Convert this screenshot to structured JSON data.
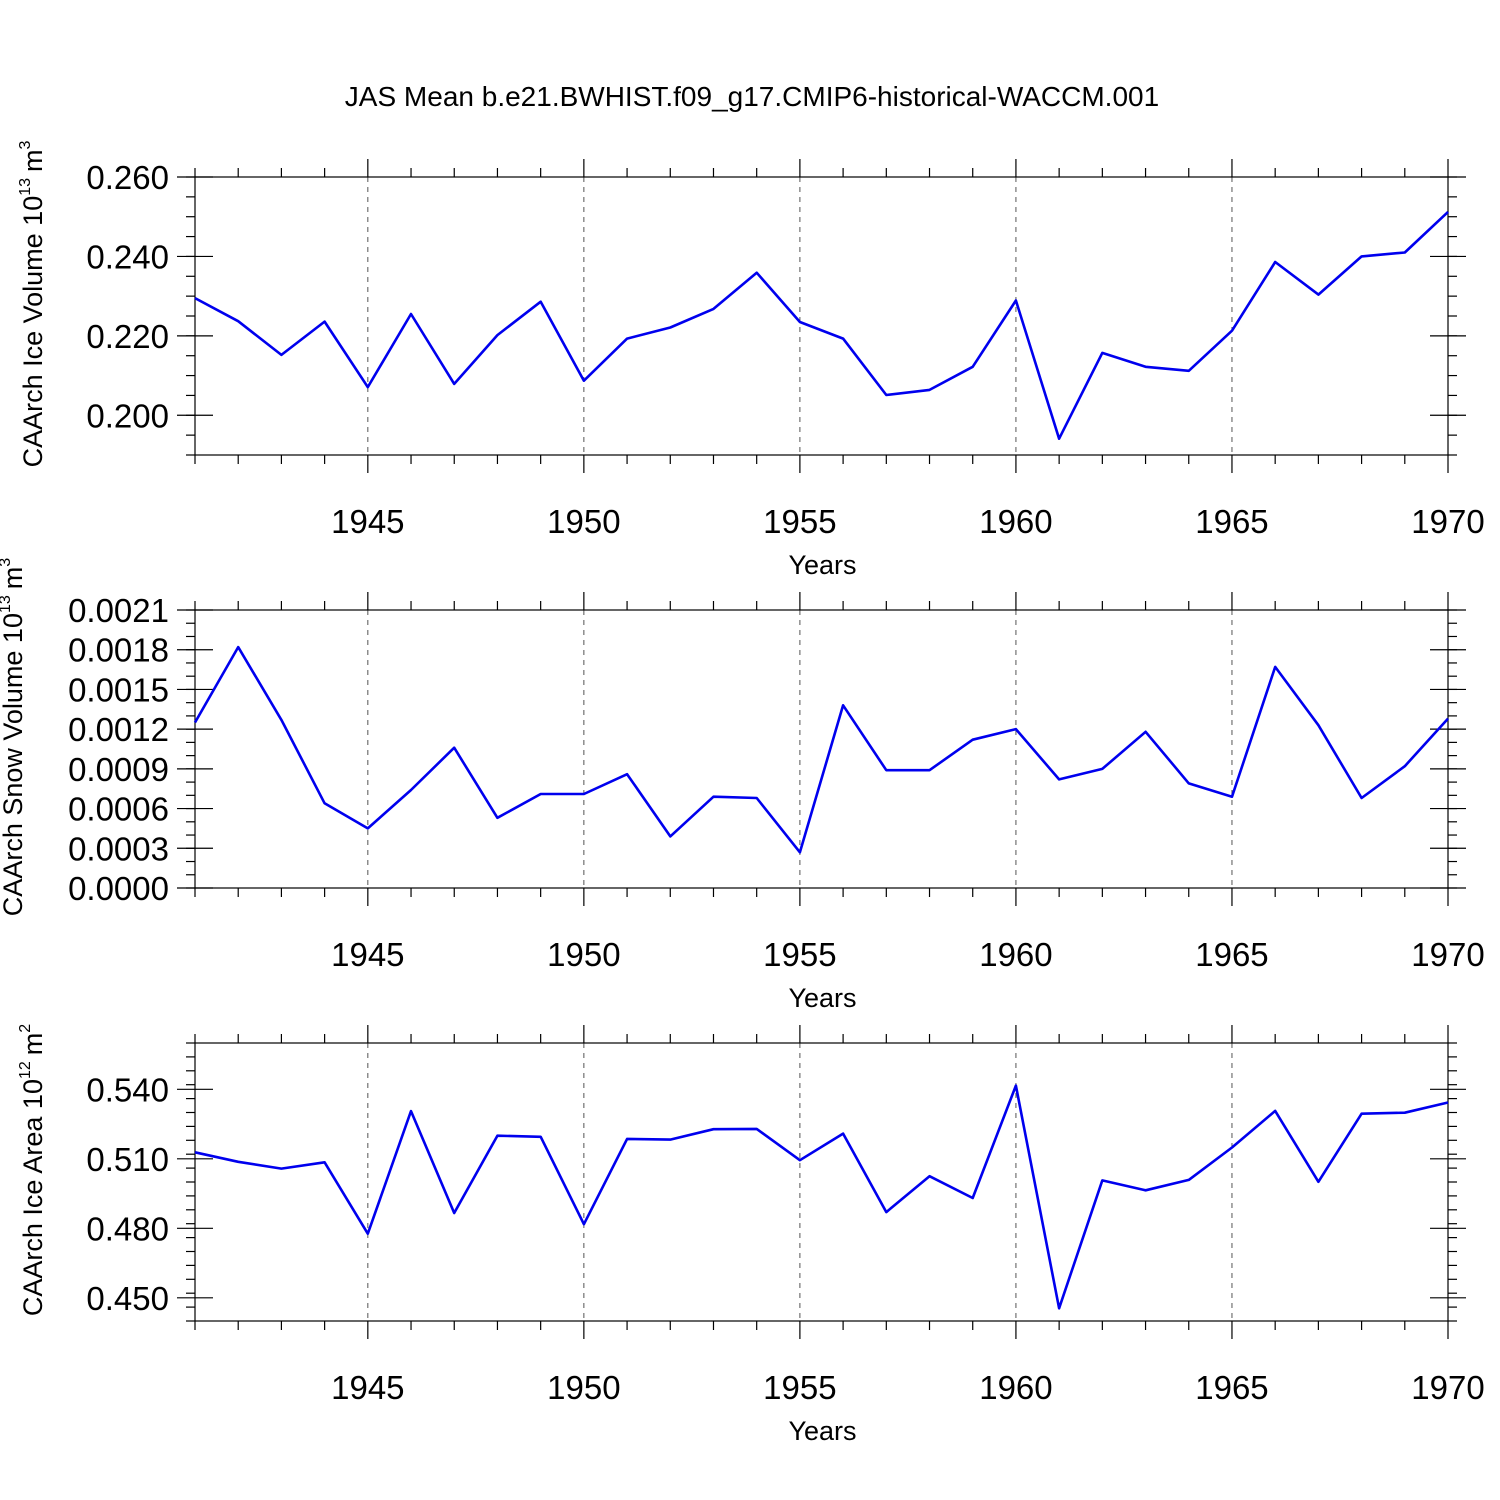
{
  "chart_data": {
    "title": "JAS Mean b.e21.BWHIST.f09_g17.CMIP6-historical-WACCM.001",
    "x": [
      1941,
      1942,
      1943,
      1944,
      1945,
      1946,
      1947,
      1948,
      1949,
      1950,
      1951,
      1952,
      1953,
      1954,
      1955,
      1956,
      1957,
      1958,
      1959,
      1960,
      1961,
      1962,
      1963,
      1964,
      1965,
      1966,
      1967,
      1968,
      1969,
      1970
    ],
    "x_tick_values": [
      1945,
      1950,
      1955,
      1960,
      1965,
      1970
    ],
    "x_tick_labels": [
      "1945",
      "1950",
      "1955",
      "1960",
      "1965",
      "1970"
    ],
    "xlim": [
      1941,
      1970
    ],
    "grid": "dashed vertical lines at labeled years",
    "panels": [
      {
        "type": "line",
        "ylabel": "CAArch Ice Volume 10",
        "ylabel_exponent": "13",
        "ylabel_unit": "m",
        "ylabel_unit_exponent": "3",
        "xlabel": "Years",
        "ylim": [
          0.19,
          0.26
        ],
        "y_tick_values": [
          0.2,
          0.22,
          0.24,
          0.26
        ],
        "y_tick_labels": [
          "0.200",
          "0.220",
          "0.240",
          "0.260"
        ],
        "y_minor_step": 0.005,
        "color": "#0000ee",
        "values": [
          0.2295,
          0.2237,
          0.2152,
          0.2236,
          0.2071,
          0.2255,
          0.2079,
          0.2202,
          0.2286,
          0.2087,
          0.2193,
          0.2221,
          0.2268,
          0.2359,
          0.2235,
          0.2193,
          0.2051,
          0.2064,
          0.2122,
          0.2289,
          0.1941,
          0.2157,
          0.2122,
          0.2112,
          0.2213,
          0.2386,
          0.2304,
          0.24,
          0.241,
          0.2512
        ]
      },
      {
        "type": "line",
        "ylabel": "CAArch Snow Volume 10",
        "ylabel_exponent": "13",
        "ylabel_unit": "m",
        "ylabel_unit_exponent": "3",
        "xlabel": "Years",
        "ylim": [
          0.0,
          0.0021
        ],
        "y_tick_values": [
          0.0,
          0.0003,
          0.0006,
          0.0009,
          0.0012,
          0.0015,
          0.0018,
          0.0021
        ],
        "y_tick_labels": [
          "0.0000",
          "0.0003",
          "0.0006",
          "0.0009",
          "0.0012",
          "0.0015",
          "0.0018",
          "0.0021"
        ],
        "y_minor_step": 0.0001,
        "color": "#0000ee",
        "values": [
          0.00125,
          0.00182,
          0.00127,
          0.00064,
          0.00045,
          0.00074,
          0.00106,
          0.00053,
          0.00071,
          0.00071,
          0.00086,
          0.00039,
          0.00069,
          0.00068,
          0.00027,
          0.00138,
          0.00089,
          0.00089,
          0.00112,
          0.0012,
          0.00082,
          0.0009,
          0.00118,
          0.00079,
          0.00069,
          0.00167,
          0.00123,
          0.00068,
          0.00092,
          0.00128
        ]
      },
      {
        "type": "line",
        "ylabel": "CAArch Ice Area 10",
        "ylabel_exponent": "12",
        "ylabel_unit": "m",
        "ylabel_unit_exponent": "2",
        "xlabel": "Years",
        "ylim": [
          0.44,
          0.56
        ],
        "y_tick_values": [
          0.45,
          0.48,
          0.51,
          0.54
        ],
        "y_tick_labels": [
          "0.450",
          "0.480",
          "0.510",
          "0.540"
        ],
        "y_minor_step": 0.006,
        "color": "#0000ee",
        "values": [
          0.5128,
          0.5087,
          0.5058,
          0.5085,
          0.4777,
          0.5306,
          0.4866,
          0.52,
          0.5195,
          0.4818,
          0.5186,
          0.5183,
          0.5228,
          0.5229,
          0.5094,
          0.5209,
          0.487,
          0.5025,
          0.4931,
          0.5416,
          0.4455,
          0.5007,
          0.4964,
          0.5009,
          0.5149,
          0.5307,
          0.5001,
          0.5295,
          0.5299,
          0.5343
        ]
      }
    ]
  }
}
